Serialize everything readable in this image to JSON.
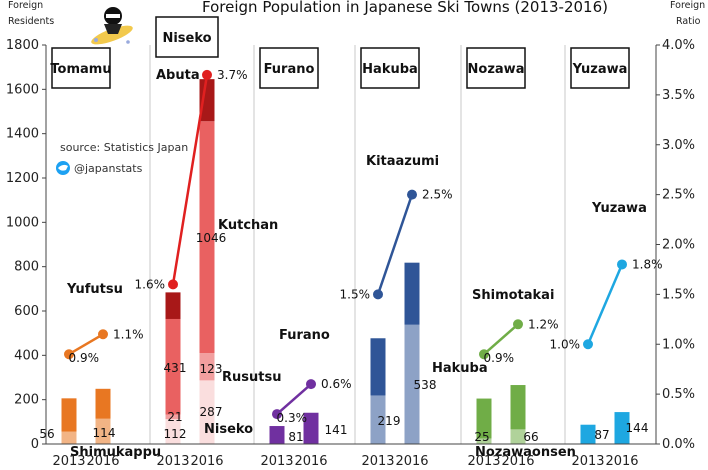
{
  "chart_data": {
    "type": "bar",
    "title": "Foreign Population in Japanese Ski Towns (2013-2016)",
    "ylabel_left": [
      "Foreign",
      "Residents"
    ],
    "ylabel_right": [
      "Foreign",
      "Ratio"
    ],
    "ylim": [
      0,
      1800
    ],
    "ylim_right": [
      0,
      4.0
    ],
    "left_ticks": [
      "0",
      "200",
      "400",
      "600",
      "800",
      "1000",
      "1200",
      "1400",
      "1600",
      "1800"
    ],
    "right_ticks": [
      "0.0%",
      "0.5%",
      "1.0%",
      "1.5%",
      "2.0%",
      "2.5%",
      "3.0%",
      "3.5%",
      "4.0%"
    ],
    "source": "source: Statistics Japan",
    "handle": "@japanstats",
    "regions": [
      {
        "name": "Tomamu",
        "color": "#e87722",
        "years": [
          "2013",
          "2016"
        ],
        "bar_segments": [
          [
            {
              "name": "Shimukappu",
              "value": 56
            },
            {
              "name": "Yufutsu",
              "value": 150
            }
          ],
          [
            {
              "name": "Shimukappu",
              "value": 114
            },
            {
              "name": "Yufutsu",
              "value": 135
            }
          ]
        ],
        "bar_labels": [
          "56",
          "114"
        ],
        "ratio": [
          0.9,
          1.1
        ],
        "ratio_labels": [
          "0.9%",
          "1.1%"
        ],
        "name_labels": [
          "Yufutsu",
          "Shimukappu"
        ]
      },
      {
        "name": "Niseko",
        "color": "#e02020",
        "years": [
          "2013",
          "2016"
        ],
        "bar_segments": [
          [
            {
              "name": "Niseko",
              "value": 112
            },
            {
              "name": "Rusutsu",
              "value": 21
            },
            {
              "name": "Kutchan",
              "value": 431
            },
            {
              "name": "Abuta",
              "value": 120
            }
          ],
          [
            {
              "name": "Niseko",
              "value": 287
            },
            {
              "name": "Rusutsu",
              "value": 123
            },
            {
              "name": "Kutchan",
              "value": 1046
            },
            {
              "name": "Abuta",
              "value": 190
            }
          ]
        ],
        "bar_labels": [
          [
            "112",
            "21",
            "431"
          ],
          [
            "287",
            "123",
            "1046"
          ]
        ],
        "ratio": [
          1.6,
          3.7
        ],
        "ratio_labels": [
          "1.6%",
          "3.7%"
        ],
        "name_labels": [
          "Abuta",
          "Kutchan",
          "Rusutsu",
          "Niseko"
        ]
      },
      {
        "name": "Furano",
        "color": "#7030a0",
        "years": [
          "2013",
          "2016"
        ],
        "bar_segments": [
          [
            {
              "name": "Furano",
              "value": 81
            }
          ],
          [
            {
              "name": "Furano",
              "value": 141
            }
          ]
        ],
        "bar_labels": [
          "81",
          "141"
        ],
        "ratio": [
          0.3,
          0.6
        ],
        "ratio_labels": [
          "0.3%",
          "0.6%"
        ],
        "name_labels": [
          "Furano"
        ]
      },
      {
        "name": "Hakuba",
        "color": "#2f5597",
        "years": [
          "2013",
          "2016"
        ],
        "bar_segments": [
          [
            {
              "name": "Hakuba",
              "value": 219
            },
            {
              "name": "Kitaazumi",
              "value": 258
            }
          ],
          [
            {
              "name": "Hakuba",
              "value": 538
            },
            {
              "name": "Kitaazumi",
              "value": 280
            }
          ]
        ],
        "bar_labels": [
          "219",
          "538"
        ],
        "ratio": [
          1.5,
          2.5
        ],
        "ratio_labels": [
          "1.5%",
          "2.5%"
        ],
        "name_labels": [
          "Kitaazumi",
          "Hakuba"
        ]
      },
      {
        "name": "Nozawa",
        "color": "#70ad47",
        "years": [
          "2013",
          "2016"
        ],
        "bar_segments": [
          [
            {
              "name": "Nozawaonsen",
              "value": 25
            },
            {
              "name": "Shimotakai",
              "value": 180
            }
          ],
          [
            {
              "name": "Nozawaonsen",
              "value": 66
            },
            {
              "name": "Shimotakai",
              "value": 200
            }
          ]
        ],
        "bar_labels": [
          "25",
          "66"
        ],
        "ratio": [
          0.9,
          1.2
        ],
        "ratio_labels": [
          "0.9%",
          "1.2%"
        ],
        "name_labels": [
          "Shimotakai",
          "Nozawaonsen"
        ]
      },
      {
        "name": "Yuzawa",
        "color": "#1ea7e1",
        "years": [
          "2013",
          "2016"
        ],
        "bar_segments": [
          [
            {
              "name": "Yuzawa",
              "value": 87
            }
          ],
          [
            {
              "name": "Yuzawa",
              "value": 144
            }
          ]
        ],
        "bar_labels": [
          "87",
          "144"
        ],
        "ratio": [
          1.0,
          1.8
        ],
        "ratio_labels": [
          "1.0%",
          "1.8%"
        ],
        "name_labels": [
          "Yuzawa"
        ]
      }
    ]
  }
}
